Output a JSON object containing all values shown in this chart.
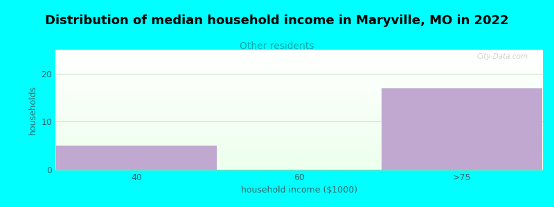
{
  "title": "Distribution of median household income in Maryville, MO in 2022",
  "subtitle": "Other residents",
  "xlabel": "household income ($1000)",
  "ylabel": "households",
  "categories": [
    "40",
    "60",
    ">75"
  ],
  "values": [
    5,
    0,
    17
  ],
  "bar_color": "#c0a8d0",
  "background_outer": "#00ffff",
  "title_fontsize": 13,
  "subtitle_fontsize": 10,
  "subtitle_color": "#00aaaa",
  "axis_label_color": "#336666",
  "tick_color": "#336666",
  "ylabel_fontsize": 9,
  "xlabel_fontsize": 9,
  "ylim": [
    0,
    25
  ],
  "yticks": [
    0,
    10,
    20
  ],
  "grid_color": "#ccddcc",
  "watermark": "City-Data.com"
}
